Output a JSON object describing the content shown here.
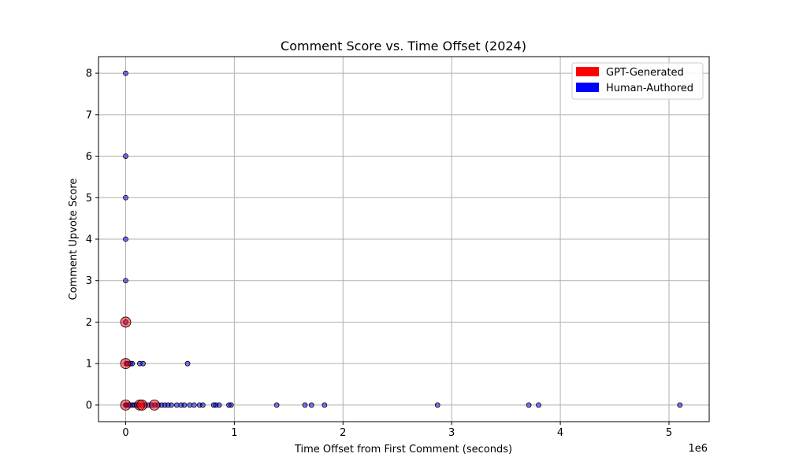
{
  "chart_data": {
    "type": "scatter",
    "title": "Comment Score vs. Time Offset (2024)",
    "xlabel": "Time Offset from First Comment (seconds)",
    "ylabel": "Comment Upvote Score",
    "x_scale_label": "1e6",
    "xlim": [
      -250000,
      5370000
    ],
    "ylim": [
      -0.4,
      8.4
    ],
    "x_ticks": [
      0,
      1000000,
      2000000,
      3000000,
      4000000,
      5000000
    ],
    "x_tick_labels": [
      "0",
      "1",
      "2",
      "3",
      "4",
      "5"
    ],
    "y_ticks": [
      0,
      1,
      2,
      3,
      4,
      5,
      6,
      7,
      8
    ],
    "y_tick_labels": [
      "0",
      "1",
      "2",
      "3",
      "4",
      "5",
      "6",
      "7",
      "8"
    ],
    "grid": true,
    "legend_position": "top-right",
    "legend": [
      {
        "label": "GPT-Generated",
        "color": "#ff0000"
      },
      {
        "label": "Human-Authored",
        "color": "#0000ff"
      }
    ],
    "series": [
      {
        "name": "Human-Authored",
        "color": "#0000ff",
        "points": [
          {
            "x": 0,
            "y": 8
          },
          {
            "x": 0,
            "y": 6
          },
          {
            "x": 0,
            "y": 5
          },
          {
            "x": 0,
            "y": 4
          },
          {
            "x": 0,
            "y": 3
          },
          {
            "x": 0,
            "y": 2
          },
          {
            "x": 5000,
            "y": 1
          },
          {
            "x": 20000,
            "y": 1
          },
          {
            "x": 45000,
            "y": 1
          },
          {
            "x": 60000,
            "y": 1
          },
          {
            "x": 130000,
            "y": 1
          },
          {
            "x": 160000,
            "y": 1
          },
          {
            "x": 570000,
            "y": 1
          },
          {
            "x": 0,
            "y": 0
          },
          {
            "x": 10000,
            "y": 0
          },
          {
            "x": 25000,
            "y": 0
          },
          {
            "x": 40000,
            "y": 0
          },
          {
            "x": 60000,
            "y": 0
          },
          {
            "x": 80000,
            "y": 0
          },
          {
            "x": 100000,
            "y": 0
          },
          {
            "x": 120000,
            "y": 0
          },
          {
            "x": 150000,
            "y": 0
          },
          {
            "x": 180000,
            "y": 0
          },
          {
            "x": 210000,
            "y": 0
          },
          {
            "x": 240000,
            "y": 0
          },
          {
            "x": 270000,
            "y": 0
          },
          {
            "x": 300000,
            "y": 0
          },
          {
            "x": 330000,
            "y": 0
          },
          {
            "x": 360000,
            "y": 0
          },
          {
            "x": 390000,
            "y": 0
          },
          {
            "x": 420000,
            "y": 0
          },
          {
            "x": 470000,
            "y": 0
          },
          {
            "x": 510000,
            "y": 0
          },
          {
            "x": 540000,
            "y": 0
          },
          {
            "x": 590000,
            "y": 0
          },
          {
            "x": 630000,
            "y": 0
          },
          {
            "x": 680000,
            "y": 0
          },
          {
            "x": 710000,
            "y": 0
          },
          {
            "x": 810000,
            "y": 0
          },
          {
            "x": 830000,
            "y": 0
          },
          {
            "x": 860000,
            "y": 0
          },
          {
            "x": 950000,
            "y": 0
          },
          {
            "x": 970000,
            "y": 0
          },
          {
            "x": 1390000,
            "y": 0
          },
          {
            "x": 1650000,
            "y": 0
          },
          {
            "x": 1710000,
            "y": 0
          },
          {
            "x": 1830000,
            "y": 0
          },
          {
            "x": 2870000,
            "y": 0
          },
          {
            "x": 3710000,
            "y": 0
          },
          {
            "x": 3800000,
            "y": 0
          },
          {
            "x": 5100000,
            "y": 0
          }
        ]
      },
      {
        "name": "GPT-Generated",
        "color": "#ff0000",
        "points": [
          {
            "x": 0,
            "y": 2
          },
          {
            "x": 0,
            "y": 1
          },
          {
            "x": 0,
            "y": 0
          },
          {
            "x": 130000,
            "y": 0
          },
          {
            "x": 150000,
            "y": 0
          },
          {
            "x": 265000,
            "y": 0
          }
        ]
      }
    ]
  }
}
